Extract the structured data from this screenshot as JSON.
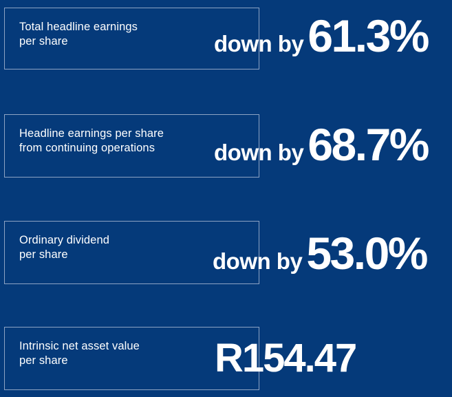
{
  "colors": {
    "background": "#053a7a",
    "box_border": "#8ea4c4",
    "text": "#ffffff"
  },
  "metrics": [
    {
      "label_line1": "Total headline earnings",
      "label_line2": "per share",
      "prefix": "down by",
      "value": "61.3%"
    },
    {
      "label_line1": "Headline earnings per share",
      "label_line2": "from continuing operations",
      "prefix": "down by",
      "value": "68.7%"
    },
    {
      "label_line1": "Ordinary dividend",
      "label_line2": "per share",
      "prefix": "down by",
      "value": "53.0%"
    },
    {
      "label_line1": "Intrinsic net asset value",
      "label_line2": "per share",
      "prefix": "",
      "value": "R154.47"
    }
  ]
}
